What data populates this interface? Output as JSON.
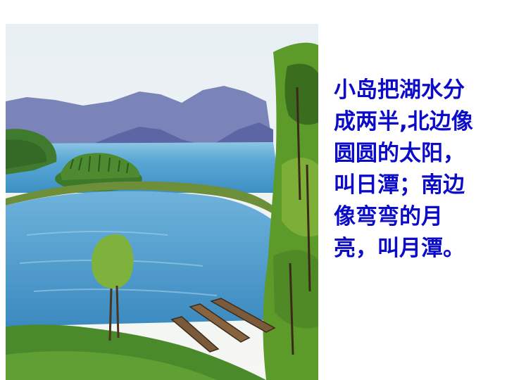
{
  "caption": {
    "lines": [
      "小岛把湖水分",
      "成两半,北边像",
      "圆圆的太阳，",
      "叫日潭；南边",
      "像弯弯的月",
      "亮，叫月潭。"
    ]
  },
  "illustration": {
    "subject": "Sun Moon Lake painting",
    "colors": {
      "sky": "#eef3f6",
      "water": "#4f9fd0",
      "mountain": "#6e78b0",
      "island": "#3f7a2e",
      "foliage": "#5f9a2c",
      "boat": "#7a5a3a"
    }
  }
}
